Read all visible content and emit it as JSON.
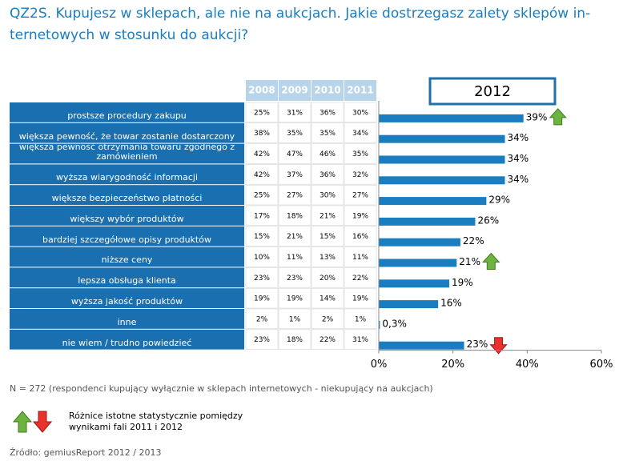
{
  "title_lines": [
    "QZ2S. Kupujesz w sklepach, ale nie na aukcjach. Jakie dostrzegasz zalety sklepów in-",
    "ternetowych w stosunku do aukcji?"
  ],
  "year_header": [
    "2008",
    "2009",
    "2010",
    "2011"
  ],
  "chart_data": {
    "type": "bar",
    "orientation": "horizontal",
    "box_label": "2012",
    "color": "#1a7dc0",
    "categories": [
      "prostsze procedury zakupu",
      "większa pewność, że towar zostanie dostarczony",
      "większa pewność otrzymania towaru zgodnego z zamówieniem",
      "wyższa wiarygodność informacji",
      "większe bezpieczeństwo płatności",
      "większy wybór produktów",
      "bardziej szczegółowe opisy produktów",
      "niższe ceny",
      "lepsza obsługa klienta",
      "wyższa jakość produktów",
      "inne",
      "nie wiem / trudno powiedzieć"
    ],
    "values": [
      39,
      34,
      34,
      34,
      29,
      26,
      22,
      21,
      19,
      16,
      0.3,
      23
    ],
    "value_labels": [
      "39%",
      "34%",
      "34%",
      "34%",
      "29%",
      "26%",
      "22%",
      "21%",
      "19%",
      "16%",
      "0,3%",
      "23%"
    ],
    "xlim": [
      0,
      60
    ],
    "xticks": [
      {
        "value": 0,
        "label": "0%"
      },
      {
        "value": 20,
        "label": "20%"
      },
      {
        "value": 40,
        "label": "40%"
      },
      {
        "value": 60,
        "label": "60%"
      }
    ],
    "arrows": [
      {
        "category": 0,
        "direction": "up"
      },
      {
        "category": 7,
        "direction": "up"
      },
      {
        "category": 11,
        "direction": "down"
      }
    ]
  },
  "table": {
    "rows": [
      [
        "25%",
        "31%",
        "36%",
        "30%"
      ],
      [
        "38%",
        "35%",
        "35%",
        "34%"
      ],
      [
        "42%",
        "47%",
        "46%",
        "35%"
      ],
      [
        "42%",
        "37%",
        "36%",
        "32%"
      ],
      [
        "25%",
        "27%",
        "30%",
        "27%"
      ],
      [
        "17%",
        "18%",
        "21%",
        "19%"
      ],
      [
        "15%",
        "21%",
        "15%",
        "16%"
      ],
      [
        "10%",
        "11%",
        "13%",
        "11%"
      ],
      [
        "23%",
        "23%",
        "20%",
        "22%"
      ],
      [
        "19%",
        "19%",
        "14%",
        "19%"
      ],
      [
        "2%",
        "1%",
        "2%",
        "1%"
      ],
      [
        "23%",
        "18%",
        "22%",
        "31%"
      ]
    ]
  },
  "footnote": "N = 272 (respondenci kupujący wyłącznie w sklepach internetowych - niekupujący na aukcjach)",
  "legend_lines": [
    "Różnice istotne statystycznie pomiędzy",
    "wynikami fali 2011 i 2012"
  ],
  "source": "Źródło: gemiusReport 2012 / 2013"
}
